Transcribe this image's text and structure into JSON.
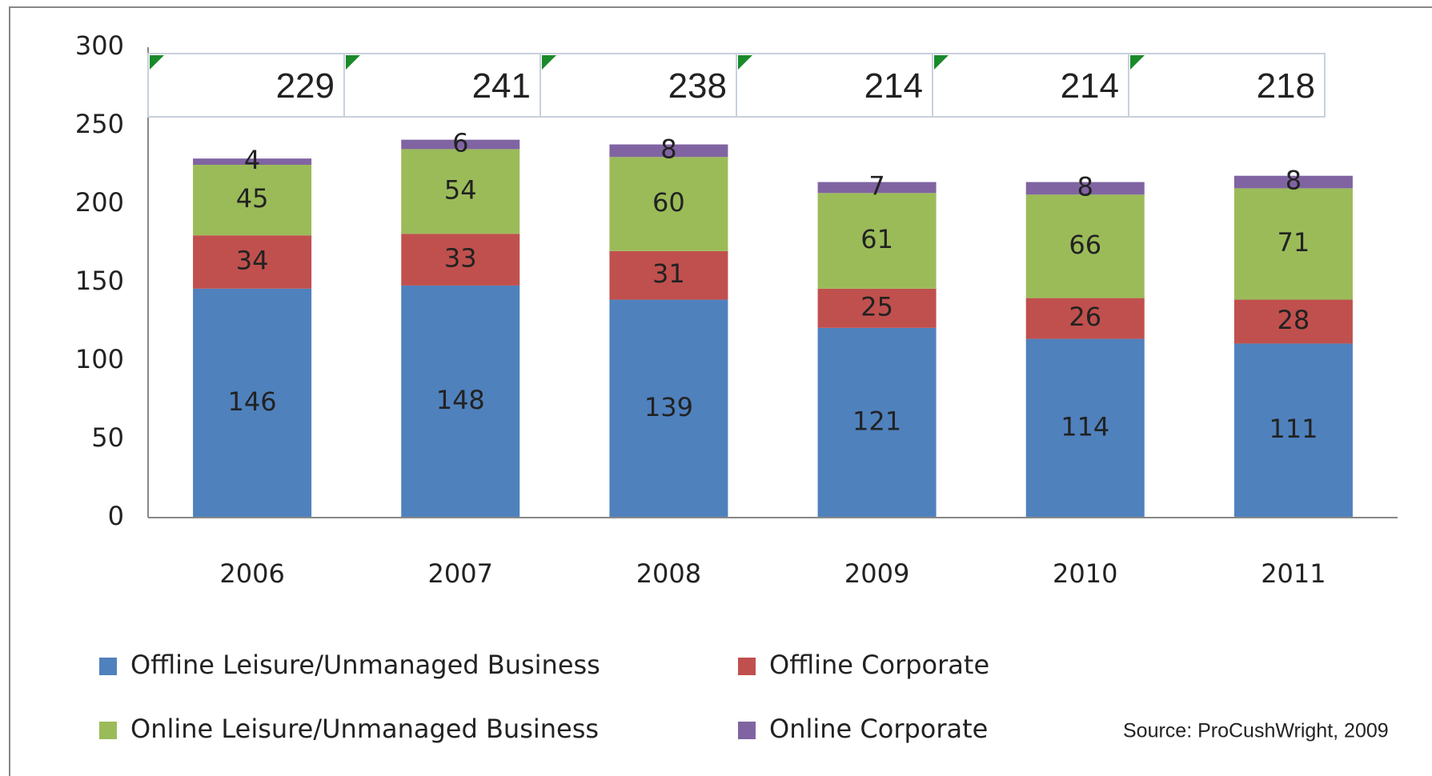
{
  "chart_data": {
    "type": "stacked_bar",
    "categories": [
      "2006",
      "2007",
      "2008",
      "2009",
      "2010",
      "2011"
    ],
    "series": [
      {
        "name": "Offline Leisure/Unmanaged Business",
        "color": "#4f81bd",
        "values": [
          146,
          148,
          139,
          121,
          114,
          111
        ]
      },
      {
        "name": "Offline Corporate",
        "color": "#c0504d",
        "values": [
          34,
          33,
          31,
          25,
          26,
          28
        ]
      },
      {
        "name": "Online Leisure/Unmanaged Business",
        "color": "#9bbb59",
        "values": [
          45,
          54,
          60,
          61,
          66,
          71
        ]
      },
      {
        "name": "Online Corporate",
        "color": "#8064a2",
        "values": [
          4,
          6,
          8,
          7,
          8,
          8
        ]
      }
    ],
    "totals": [
      229,
      241,
      238,
      214,
      214,
      218
    ],
    "ylim": [
      0,
      300
    ],
    "yticks": [
      0,
      50,
      100,
      150,
      200,
      250,
      300
    ],
    "grid": false,
    "source": "Source: ProCushWright, 2009"
  }
}
